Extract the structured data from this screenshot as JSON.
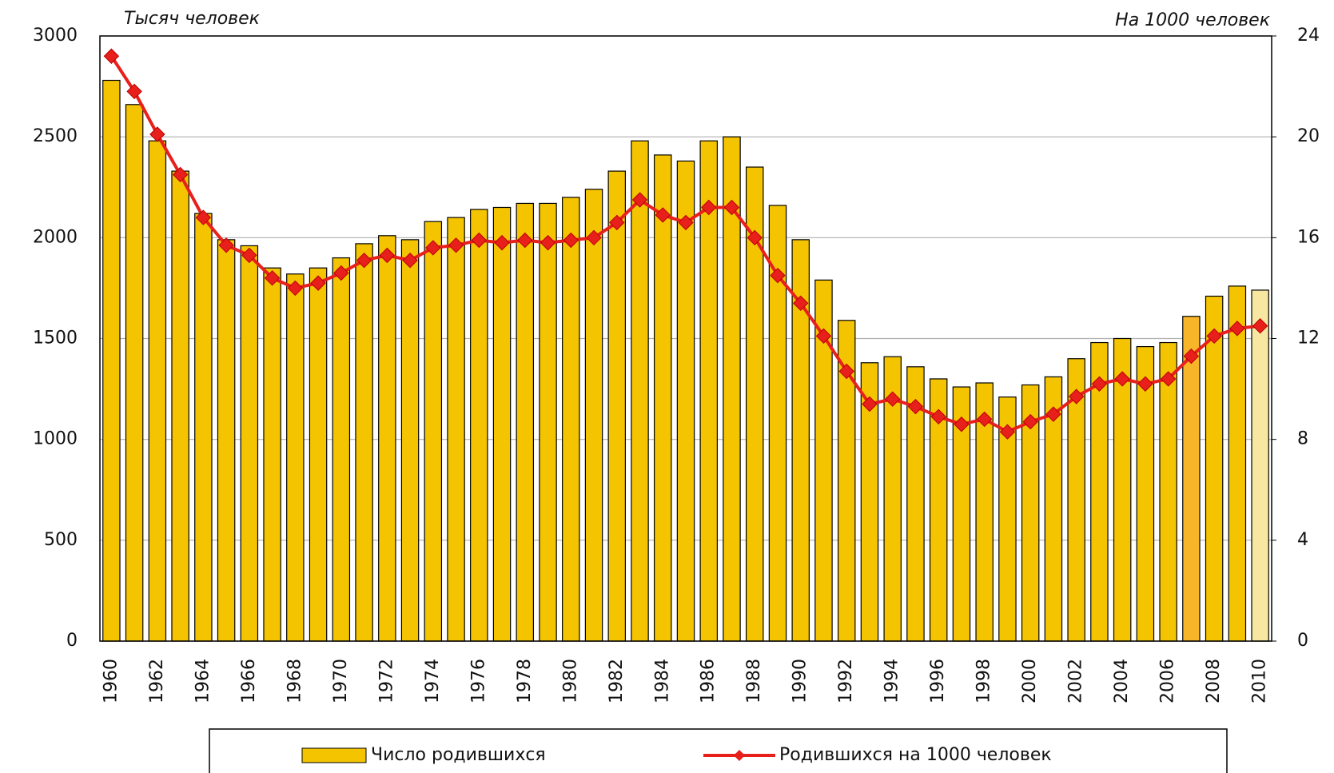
{
  "chart_data": {
    "type": "bar+line",
    "y_label": "Тысяч человек",
    "y2_label": "На 1000 человек",
    "categories": [
      "1960",
      null,
      "1962",
      null,
      "1964",
      null,
      "1966",
      null,
      "1968",
      null,
      "1970",
      null,
      "1972",
      null,
      "1974",
      null,
      "1976",
      null,
      "1978",
      null,
      "1980",
      null,
      "1982",
      null,
      "1984",
      null,
      "1986",
      null,
      "1988",
      null,
      "1990",
      null,
      "1992",
      null,
      "1994",
      null,
      "1996",
      null,
      "1998",
      null,
      "2000",
      null,
      "2002",
      null,
      "2004",
      null,
      "2006",
      null,
      "2008",
      null,
      "2010"
    ],
    "series": [
      {
        "name": "Число родившихся",
        "type": "bar",
        "color": "#f5c400",
        "colors": [
          "#f5c400",
          "#f5c400",
          "#f5c400",
          "#f5c400",
          "#f5c400",
          "#f5c400",
          "#f5c400",
          "#f5c400",
          "#f5c400",
          "#f5c400",
          "#f5c400",
          "#f5c400",
          "#f5c400",
          "#f5c400",
          "#f5c400",
          "#f5c400",
          "#f5c400",
          "#f5c400",
          "#f5c400",
          "#f5c400",
          "#f5c400",
          "#f5c400",
          "#f5c400",
          "#f5c400",
          "#f5c400",
          "#f5c400",
          "#f5c400",
          "#f5c400",
          "#f5c400",
          "#f5c400",
          "#f5c400",
          "#f5c400",
          "#f5c400",
          "#f5c400",
          "#f5c400",
          "#f5c400",
          "#f5c400",
          "#f5c400",
          "#f5c400",
          "#f5c400",
          "#f5c400",
          "#f5c400",
          "#f5c400",
          "#f5c400",
          "#f5c400",
          "#f5c400",
          "#f5c400",
          "#f7b52a",
          "#f5c400",
          "#f5c400",
          "#f7e7a0"
        ],
        "values": [
          2780,
          2660,
          2480,
          2330,
          2120,
          1990,
          1960,
          1850,
          1820,
          1850,
          1900,
          1970,
          2010,
          1990,
          2080,
          2100,
          2140,
          2150,
          2170,
          2170,
          2200,
          2240,
          2330,
          2480,
          2410,
          2380,
          2480,
          2500,
          2350,
          2160,
          1990,
          1790,
          1590,
          1380,
          1410,
          1360,
          1300,
          1260,
          1280,
          1210,
          1270,
          1310,
          1400,
          1480,
          1500,
          1460,
          1480,
          1610,
          1710,
          1760,
          1740
        ]
      },
      {
        "name": "Родившихся на 1000 человек",
        "type": "line",
        "axis": "y2",
        "color": "#e8201c",
        "values": [
          23.2,
          21.8,
          20.1,
          18.5,
          16.8,
          15.7,
          15.3,
          14.4,
          14.0,
          14.2,
          14.6,
          15.1,
          15.3,
          15.1,
          15.6,
          15.7,
          15.9,
          15.8,
          15.9,
          15.8,
          15.9,
          16.0,
          16.6,
          17.5,
          16.9,
          16.6,
          17.2,
          17.2,
          16.0,
          14.5,
          13.4,
          12.1,
          10.7,
          9.4,
          9.6,
          9.3,
          8.9,
          8.6,
          8.8,
          8.3,
          8.7,
          9.0,
          9.7,
          10.2,
          10.4,
          10.2,
          10.4,
          11.3,
          12.1,
          12.4,
          12.5
        ]
      }
    ],
    "ylim": [
      0,
      3000
    ],
    "yticks": [
      0,
      500,
      1000,
      1500,
      2000,
      2500,
      3000
    ],
    "y2lim": [
      0,
      24
    ],
    "y2ticks": [
      0,
      4,
      8,
      12,
      16,
      20,
      24
    ],
    "grid": true,
    "legend": "bottom"
  }
}
